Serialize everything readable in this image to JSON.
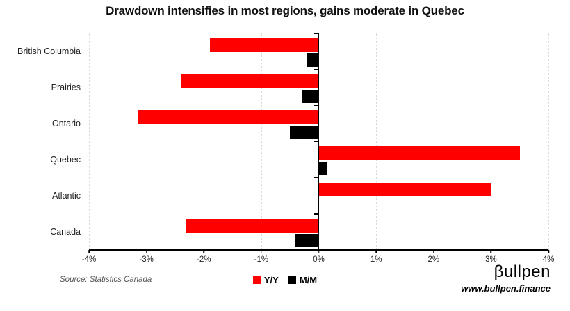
{
  "title": "Drawdown intensifies in most regions, gains moderate in Quebec",
  "source": "Source: Statistics Canada",
  "branding": {
    "logo": "βullpen",
    "url": "www.bullpen.finance"
  },
  "legend": [
    {
      "label": "Y/Y",
      "color": "#ff0000"
    },
    {
      "label": "M/M",
      "color": "#000000"
    }
  ],
  "colors": {
    "yy": "#ff0000",
    "mm": "#000000",
    "gridline": "#d9d9d9",
    "axis": "#000000"
  },
  "chart_data": {
    "type": "bar",
    "orientation": "horizontal",
    "title": "Drawdown intensifies in most regions, gains moderate in Quebec",
    "categories": [
      "British Columbia",
      "Prairies",
      "Ontario",
      "Quebec",
      "Atlantic",
      "Canada"
    ],
    "series": [
      {
        "name": "Y/Y",
        "color": "#ff0000",
        "values": [
          -1.9,
          -2.4,
          -3.15,
          3.5,
          3.0,
          -2.3
        ]
      },
      {
        "name": "M/M",
        "color": "#000000",
        "values": [
          -0.2,
          -0.3,
          -0.5,
          0.15,
          0.0,
          -0.4
        ]
      }
    ],
    "xlim": [
      -4,
      4
    ],
    "x_ticks": [
      "-4%",
      "-3%",
      "-2%",
      "-1%",
      "0%",
      "1%",
      "2%",
      "3%",
      "4%"
    ],
    "x_tick_values": [
      -4,
      -3,
      -2,
      -1,
      0,
      1,
      2,
      3,
      4
    ],
    "xlabel": "",
    "ylabel": "",
    "grid": true,
    "legend_position": "bottom"
  }
}
